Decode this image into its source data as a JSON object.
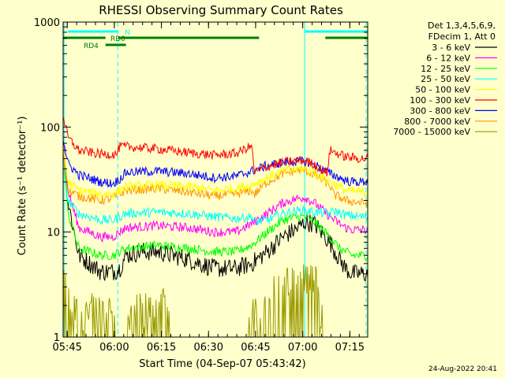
{
  "chart_data": {
    "type": "line",
    "title": "RHESSI Observing Summary Count Rates",
    "xlabel": "Start Time (04-Sep-07 05:43:42)",
    "ylabel": "Count Rate (s⁻¹ detector⁻¹)",
    "log_y": true,
    "ylim": [
      1,
      1000
    ],
    "xlim_minutes": [
      0,
      97
    ],
    "x_ticks": [
      {
        "label": "05:45",
        "min": 1.3
      },
      {
        "label": "06:00",
        "min": 16.3
      },
      {
        "label": "06:15",
        "min": 31.3
      },
      {
        "label": "06:30",
        "min": 46.3
      },
      {
        "label": "06:45",
        "min": 61.3
      },
      {
        "label": "07:00",
        "min": 76.3
      },
      {
        "label": "07:15",
        "min": 91.3
      }
    ],
    "y_ticks": [
      {
        "label": "1",
        "value": 1
      },
      {
        "label": "10",
        "value": 10
      },
      {
        "label": "100",
        "value": 100
      },
      {
        "label": "1000",
        "value": 1000
      }
    ],
    "legend_header": [
      "Det 1,3,4,5,6,9,",
      "FDecim 1, Att 0"
    ],
    "series": [
      {
        "name": "3 - 6 keV",
        "color": "#000000",
        "min": [
          0,
          1.5,
          5,
          12,
          16,
          18,
          20,
          25,
          30,
          40,
          48,
          55,
          60,
          65,
          70,
          75,
          77,
          80,
          85,
          88,
          90,
          92,
          95
        ],
        "values": [
          70,
          20,
          6,
          4.2,
          4.2,
          4.5,
          6,
          6.5,
          6.5,
          5.5,
          4.5,
          4.5,
          5,
          6.5,
          9,
          11,
          12.5,
          12,
          8,
          5.5,
          4.5,
          4,
          4
        ]
      },
      {
        "name": "6 - 12 keV",
        "color": "#ff00ff",
        "min": [
          0,
          1.5,
          5,
          12,
          16,
          18,
          20,
          30,
          40,
          48,
          55,
          60,
          65,
          70,
          75,
          77,
          80,
          85,
          88,
          90,
          92,
          95
        ],
        "values": [
          75,
          25,
          11,
          9,
          9,
          10,
          11,
          11.5,
          11,
          10,
          10,
          12,
          15,
          19,
          21,
          21.5,
          19,
          14,
          12,
          11,
          10.5,
          10.5
        ]
      },
      {
        "name": "12 - 25 keV",
        "color": "#00ff00",
        "min": [
          0,
          1.5,
          5,
          12,
          16,
          18,
          20,
          30,
          40,
          48,
          55,
          60,
          65,
          70,
          75,
          77,
          80,
          85,
          88,
          90,
          92,
          95
        ],
        "values": [
          65,
          15,
          7,
          6,
          6,
          6.5,
          7,
          7.5,
          7,
          6.5,
          6.5,
          7.5,
          10,
          13,
          14,
          14,
          12.5,
          9,
          7,
          6.5,
          6,
          6
        ]
      },
      {
        "name": "25 - 50 keV",
        "color": "#00ffff",
        "min": [
          0,
          1.5,
          5,
          12,
          16,
          18,
          20,
          30,
          40,
          48,
          55,
          60,
          61,
          65,
          70,
          75,
          77,
          80,
          85,
          86,
          90,
          95
        ],
        "values": [
          60,
          20,
          15,
          13,
          13,
          14,
          15,
          15.5,
          15,
          14,
          13.5,
          14,
          12.5,
          13,
          15,
          16,
          16,
          15.5,
          15,
          16,
          14.5,
          14
        ]
      },
      {
        "name": "50 - 100 keV",
        "color": "#ffff00",
        "min": [
          0,
          1.5,
          5,
          12,
          16,
          18,
          20,
          30,
          40,
          48,
          55,
          60,
          61,
          65,
          70,
          75,
          77,
          80,
          85,
          86,
          90,
          95
        ],
        "values": [
          65,
          30,
          25,
          23,
          23,
          25,
          27,
          28,
          27,
          25,
          26,
          28,
          29,
          33,
          38,
          40,
          40,
          37,
          30,
          29,
          25,
          24
        ]
      },
      {
        "name": "100 - 300 keV",
        "color": "#ff0000",
        "min": [
          0,
          1.5,
          5,
          12,
          17,
          18,
          20,
          30,
          40,
          48,
          55,
          60,
          61,
          65,
          70,
          75,
          77,
          80,
          84,
          85,
          90,
          95
        ],
        "values": [
          130,
          80,
          60,
          55,
          55,
          65,
          65,
          62,
          57,
          54,
          56,
          66,
          37,
          42,
          46,
          48,
          48,
          44,
          36,
          60,
          52,
          50
        ]
      },
      {
        "name": "300 - 800 keV",
        "color": "#0000ff",
        "min": [
          0,
          1.5,
          5,
          12,
          16,
          18,
          20,
          30,
          40,
          48,
          55,
          60,
          65,
          70,
          75,
          77,
          80,
          85,
          88,
          90,
          92,
          95
        ],
        "values": [
          80,
          45,
          35,
          30,
          29,
          32,
          37,
          38,
          36,
          33,
          34,
          38,
          43,
          46,
          47,
          47,
          44,
          36,
          33,
          31,
          30,
          30
        ]
      },
      {
        "name": "800 - 7000 keV",
        "color": "#ff9900",
        "min": [
          0,
          1.5,
          5,
          12,
          16,
          18,
          20,
          30,
          40,
          48,
          55,
          60,
          61,
          65,
          70,
          75,
          77,
          80,
          85,
          86,
          90,
          95
        ],
        "values": [
          60,
          25,
          22,
          20,
          21,
          23,
          25,
          26,
          24,
          22,
          23,
          25,
          23,
          30,
          36,
          39,
          39,
          35,
          28,
          23,
          20,
          19
        ]
      },
      {
        "name": "7000 - 15000 keV",
        "color": "#999900",
        "min": [
          0,
          1.5,
          3,
          10,
          16,
          16.5,
          20,
          21,
          33,
          34,
          59,
          60,
          66,
          67,
          81,
          82,
          83,
          84,
          91,
          92,
          97
        ],
        "values": [
          3.5,
          2,
          1.5,
          1.6,
          1.6,
          1,
          1,
          1.5,
          1.8,
          1,
          1,
          1.4,
          1.6,
          3,
          3,
          1.5,
          1.3,
          1,
          1,
          1,
          1
        ]
      }
    ],
    "states": [
      {
        "name": "N",
        "color": "#00ffff",
        "segments": [
          [
            1.5,
            17.3
          ],
          [
            76.9,
            97
          ]
        ]
      },
      {
        "name": "RD0",
        "color": "#008000",
        "segments": [
          [
            0,
            13.5
          ],
          [
            17.5,
            62.4
          ],
          [
            83.5,
            97
          ]
        ]
      },
      {
        "name": "RD4",
        "color": "#008000",
        "segments": [
          [
            13.5,
            20
          ]
        ]
      }
    ],
    "vlines": [
      {
        "min": 0.3,
        "color": "#00ffff",
        "style": "solid"
      },
      {
        "min": 17.4,
        "color": "#00ffff",
        "style": "dashed"
      },
      {
        "min": 76.9,
        "color": "#00ffff",
        "style": "solid"
      },
      {
        "min": 96.5,
        "color": "#00ffff",
        "style": "dashed"
      }
    ]
  },
  "footer_date": "24-Aug-2022 20:41"
}
